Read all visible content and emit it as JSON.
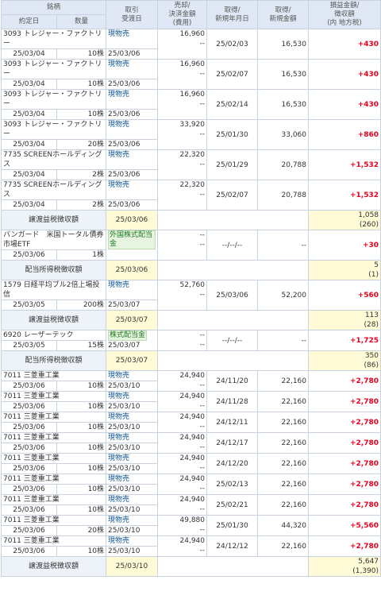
{
  "headers": {
    "col1_top": "銘柄",
    "col1_a": "約定日",
    "col1_b": "数量",
    "col2_top": "取引",
    "col2_bottom": "受渡日",
    "col3": [
      "売却/",
      "決済金額",
      "(費用)"
    ],
    "col4": [
      "取得/",
      "新規年月日"
    ],
    "col5": [
      "取得/",
      "新規金額"
    ],
    "col6": [
      "損益金額/",
      "徴収額",
      "(内 地方税)"
    ]
  },
  "rows": [
    {
      "type": "trade",
      "name": "3093 トレジャー・ファクトリー",
      "date": "25/03/04",
      "qty": "10株",
      "trade": "現物売",
      "settle": "25/03/06",
      "sell": "16,960",
      "cost": "--",
      "acq_date": "25/02/03",
      "acq_amount": "16,530",
      "pl": "+430"
    },
    {
      "type": "trade",
      "name": "3093 トレジャー・ファクトリー",
      "date": "25/03/04",
      "qty": "10株",
      "trade": "現物売",
      "settle": "25/03/06",
      "sell": "16,960",
      "cost": "--",
      "acq_date": "25/02/07",
      "acq_amount": "16,530",
      "pl": "+430"
    },
    {
      "type": "trade",
      "name": "3093 トレジャー・ファクトリー",
      "date": "25/03/04",
      "qty": "10株",
      "trade": "現物売",
      "settle": "25/03/06",
      "sell": "16,960",
      "cost": "--",
      "acq_date": "25/02/14",
      "acq_amount": "16,530",
      "pl": "+430"
    },
    {
      "type": "trade",
      "name": "3093 トレジャー・ファクトリー",
      "date": "25/03/04",
      "qty": "20株",
      "trade": "現物売",
      "settle": "25/03/06",
      "sell": "33,920",
      "cost": "--",
      "acq_date": "25/01/30",
      "acq_amount": "33,060",
      "pl": "+860"
    },
    {
      "type": "trade",
      "name": "7735 SCREENホールディングス",
      "date": "25/03/04",
      "qty": "2株",
      "trade": "現物売",
      "settle": "25/03/06",
      "sell": "22,320",
      "cost": "--",
      "acq_date": "25/01/29",
      "acq_amount": "20,788",
      "pl": "+1,532"
    },
    {
      "type": "trade",
      "name": "7735 SCREENホールディングス",
      "date": "25/03/04",
      "qty": "2株",
      "trade": "現物売",
      "settle": "25/03/06",
      "sell": "22,320",
      "cost": "--",
      "acq_date": "25/02/07",
      "acq_amount": "20,788",
      "pl": "+1,532"
    },
    {
      "type": "summary",
      "label": "譲渡益税徴収額",
      "date": "25/03/06",
      "amount": "1,058",
      "local": "(260)"
    },
    {
      "type": "trade",
      "name": "バンガード　米国トータル債券市場ETF",
      "date": "25/03/06",
      "qty": "1株",
      "trade": "外国株式配当金",
      "badge": true,
      "settle": "",
      "sell": "--",
      "cost": "--",
      "acq_date": "--/--/--",
      "acq_amount": "--",
      "pl": "+30"
    },
    {
      "type": "summary",
      "label": "配当所得税徴収額",
      "date": "25/03/06",
      "amount": "5",
      "local": "(1)"
    },
    {
      "type": "trade",
      "name": "1579 日経平均ブル2倍上場投信",
      "date": "25/03/05",
      "qty": "200株",
      "trade": "現物売",
      "settle": "25/03/07",
      "sell": "52,760",
      "cost": "--",
      "acq_date": "25/03/06",
      "acq_amount": "52,200",
      "pl": "+560"
    },
    {
      "type": "summary",
      "label": "譲渡益税徴収額",
      "date": "25/03/07",
      "amount": "113",
      "local": "(28)"
    },
    {
      "type": "trade",
      "name": "6920 レーザーテック",
      "date": "25/03/05",
      "qty": "15株",
      "trade": "株式配当金",
      "badge": true,
      "settle": "25/03/07",
      "sell": "--",
      "cost": "--",
      "acq_date": "--/--/--",
      "acq_amount": "--",
      "pl": "+1,725"
    },
    {
      "type": "summary",
      "label": "配当所得税徴収額",
      "date": "25/03/07",
      "amount": "350",
      "local": "(86)"
    },
    {
      "type": "trade",
      "name": "7011 三菱重工業",
      "date": "25/03/06",
      "qty": "10株",
      "trade": "現物売",
      "settle": "25/03/10",
      "sell": "24,940",
      "cost": "--",
      "acq_date": "24/11/20",
      "acq_amount": "22,160",
      "pl": "+2,780"
    },
    {
      "type": "trade",
      "name": "7011 三菱重工業",
      "date": "25/03/06",
      "qty": "10株",
      "trade": "現物売",
      "settle": "25/03/10",
      "sell": "24,940",
      "cost": "--",
      "acq_date": "24/11/28",
      "acq_amount": "22,160",
      "pl": "+2,780"
    },
    {
      "type": "trade",
      "name": "7011 三菱重工業",
      "date": "25/03/06",
      "qty": "10株",
      "trade": "現物売",
      "settle": "25/03/10",
      "sell": "24,940",
      "cost": "--",
      "acq_date": "24/12/11",
      "acq_amount": "22,160",
      "pl": "+2,780"
    },
    {
      "type": "trade",
      "name": "7011 三菱重工業",
      "date": "25/03/06",
      "qty": "10株",
      "trade": "現物売",
      "settle": "25/03/10",
      "sell": "24,940",
      "cost": "--",
      "acq_date": "24/12/17",
      "acq_amount": "22,160",
      "pl": "+2,780"
    },
    {
      "type": "trade",
      "name": "7011 三菱重工業",
      "date": "25/03/06",
      "qty": "10株",
      "trade": "現物売",
      "settle": "25/03/10",
      "sell": "24,940",
      "cost": "--",
      "acq_date": "24/12/20",
      "acq_amount": "22,160",
      "pl": "+2,780"
    },
    {
      "type": "trade",
      "name": "7011 三菱重工業",
      "date": "25/03/06",
      "qty": "10株",
      "trade": "現物売",
      "settle": "25/03/10",
      "sell": "24,940",
      "cost": "--",
      "acq_date": "25/02/13",
      "acq_amount": "22,160",
      "pl": "+2,780"
    },
    {
      "type": "trade",
      "name": "7011 三菱重工業",
      "date": "25/03/06",
      "qty": "10株",
      "trade": "現物売",
      "settle": "25/03/10",
      "sell": "24,940",
      "cost": "--",
      "acq_date": "25/02/21",
      "acq_amount": "22,160",
      "pl": "+2,780"
    },
    {
      "type": "trade",
      "name": "7011 三菱重工業",
      "date": "25/03/06",
      "qty": "20株",
      "trade": "現物売",
      "settle": "25/03/10",
      "sell": "49,880",
      "cost": "--",
      "acq_date": "25/01/30",
      "acq_amount": "44,320",
      "pl": "+5,560"
    },
    {
      "type": "trade",
      "name": "7011 三菱重工業",
      "date": "25/03/06",
      "qty": "10株",
      "trade": "現物売",
      "settle": "25/03/10",
      "sell": "24,940",
      "cost": "--",
      "acq_date": "24/12/12",
      "acq_amount": "22,160",
      "pl": "+2,780"
    },
    {
      "type": "summary",
      "label": "譲渡益税徴収額",
      "date": "25/03/10",
      "amount": "5,647",
      "local": "(1,390)"
    }
  ]
}
